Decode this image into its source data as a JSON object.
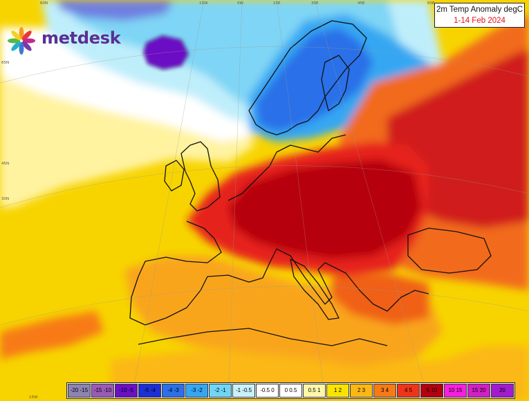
{
  "title": {
    "line1": "2m Temp Anomaly degC",
    "line2": "1-14 Feb 2024"
  },
  "logo": {
    "text": "metdesk"
  },
  "coordinate_labels": {
    "top": [
      "60N",
      "15W",
      "0W",
      "15E",
      "30E",
      "45E",
      "60E"
    ],
    "left": [
      "65N",
      "45N",
      "30N"
    ],
    "bottom": [
      "15W",
      "30E"
    ]
  },
  "legend": {
    "bins": [
      {
        "label": "-20 -15",
        "color": "#8e84b2"
      },
      {
        "label": "-15 -10",
        "color": "#9a5bb6"
      },
      {
        "label": "-10 -5",
        "color": "#6c0fc6"
      },
      {
        "label": "-5 -4",
        "color": "#1d2fd6"
      },
      {
        "label": "-4 -3",
        "color": "#2c6fe8"
      },
      {
        "label": "-3 -2",
        "color": "#35a7f2"
      },
      {
        "label": "-2 -1",
        "color": "#6fd6f6"
      },
      {
        "label": "-1 -0.5",
        "color": "#c9f1fb"
      },
      {
        "label": "-0.5 0",
        "color": "#ffffff"
      },
      {
        "label": "0 0.5",
        "color": "#ffffff"
      },
      {
        "label": "0.5 1",
        "color": "#fff7a8"
      },
      {
        "label": "1 2",
        "color": "#f9e400"
      },
      {
        "label": "2 3",
        "color": "#fbb812"
      },
      {
        "label": "3 4",
        "color": "#f77a16"
      },
      {
        "label": "4 5",
        "color": "#f03418"
      },
      {
        "label": "5 10",
        "color": "#b5000f"
      },
      {
        "label": "10 15",
        "color": "#f71fe0"
      },
      {
        "label": "15 20",
        "color": "#d31fc6"
      },
      {
        "label": "20",
        "color": "#a21bd0"
      }
    ]
  }
}
